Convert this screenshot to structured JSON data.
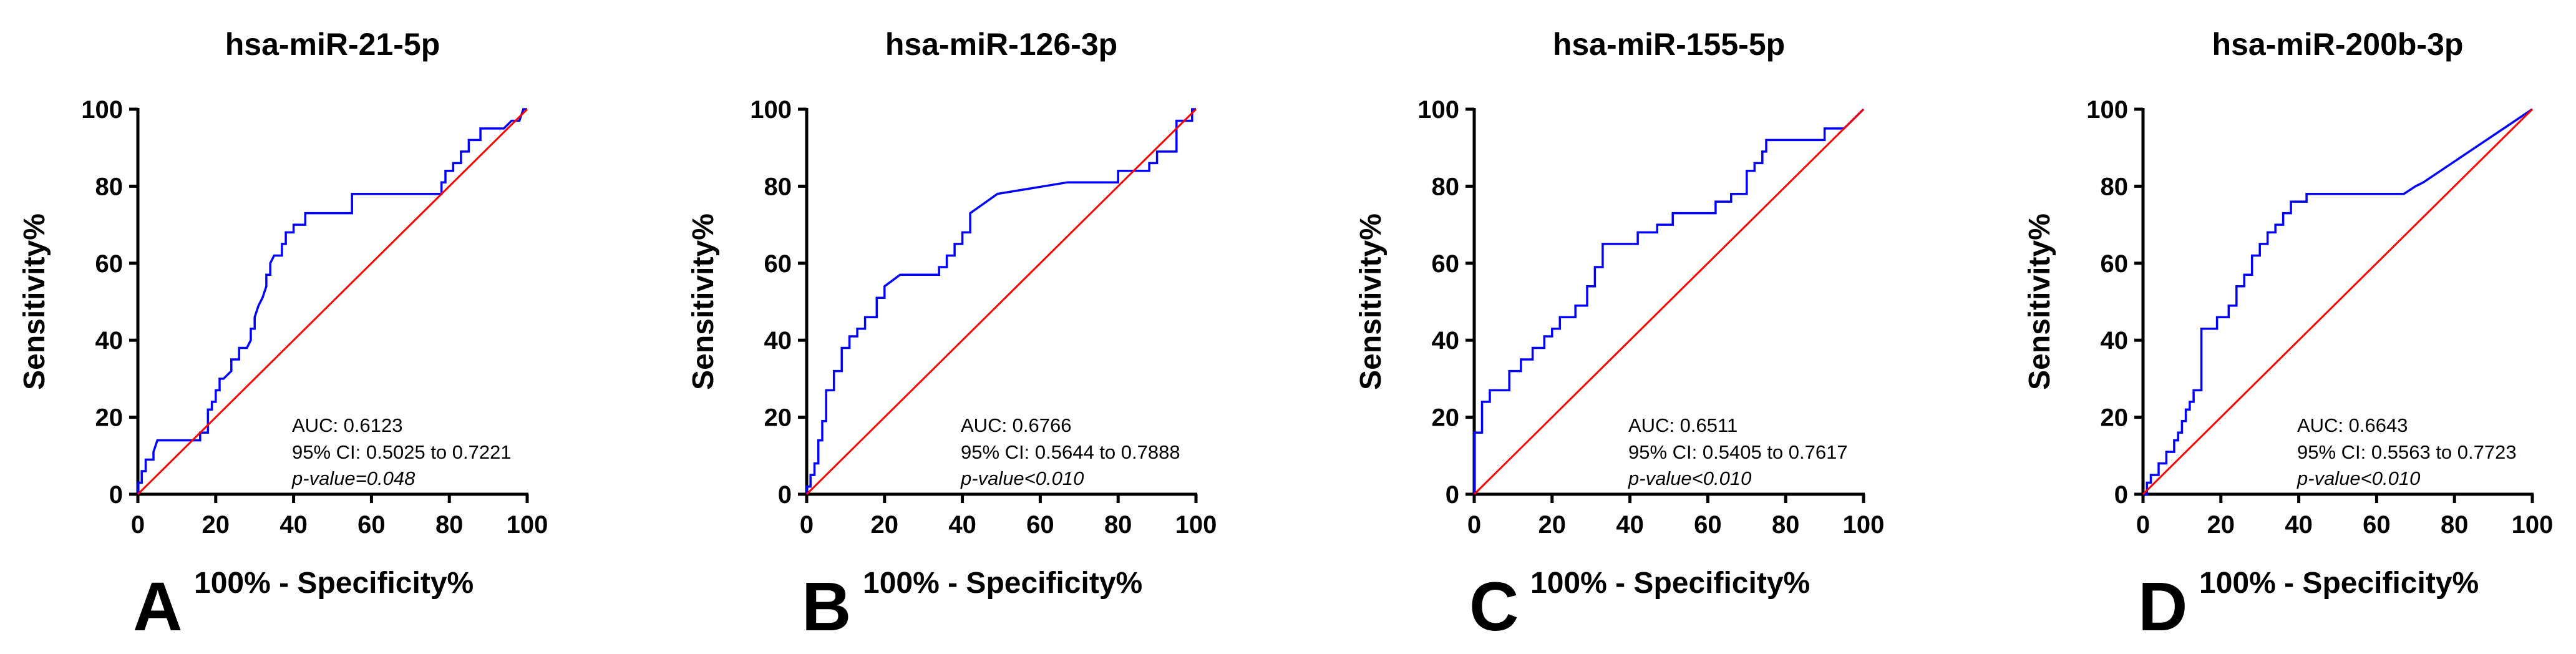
{
  "chart_data": [
    {
      "type": "line",
      "panel": "A",
      "title": "hsa-miR-21-5p",
      "xlabel": "100% - Specificity%",
      "ylabel": "Sensitivity%",
      "xlim": [
        0,
        100
      ],
      "ylim": [
        0,
        100
      ],
      "xticks": [
        "0",
        "20",
        "40",
        "60",
        "80",
        "100"
      ],
      "yticks": [
        "0",
        "20",
        "40",
        "60",
        "80",
        "100"
      ],
      "annotations": {
        "auc": "AUC: 0.6123",
        "ci": "95% CI: 0.5025 to 0.7221",
        "p": "p-value=0.048"
      },
      "series": [
        {
          "name": "ROC curve",
          "color": "#0000ff",
          "x": [
            0,
            0,
            1,
            1,
            2,
            2,
            4,
            4,
            5,
            16,
            16,
            17,
            18,
            18,
            19,
            19,
            20,
            20,
            21,
            21,
            22,
            24,
            24,
            26,
            26,
            28,
            29,
            29,
            30,
            30,
            31,
            32,
            33,
            33,
            34,
            34,
            35,
            37,
            37,
            38,
            38,
            40,
            40,
            43,
            43,
            45,
            45,
            55,
            55,
            78,
            78,
            79,
            79,
            80,
            81,
            81,
            82,
            83,
            83,
            85,
            85,
            88,
            88,
            94,
            94,
            96,
            97,
            98,
            99,
            100
          ],
          "y": [
            0,
            3,
            3,
            6,
            6,
            9,
            9,
            11,
            14,
            14,
            16,
            16,
            16,
            22,
            22,
            24,
            24,
            27,
            27,
            30,
            30,
            32,
            35,
            35,
            38,
            38,
            40,
            43,
            43,
            46,
            49,
            51,
            54,
            57,
            57,
            60,
            62,
            62,
            65,
            65,
            68,
            68,
            70,
            70,
            73,
            73,
            73,
            73,
            78,
            78,
            81,
            81,
            84,
            84,
            84,
            86,
            86,
            86,
            89,
            89,
            92,
            92,
            95,
            95,
            95,
            97,
            97,
            97,
            100,
            100
          ]
        },
        {
          "name": "Reference line",
          "color": "#ff0000",
          "x": [
            0,
            100
          ],
          "y": [
            0,
            100
          ]
        }
      ]
    },
    {
      "type": "line",
      "panel": "B",
      "title": "hsa-miR-126-3p",
      "xlabel": "100% - Specificity%",
      "ylabel": "Sensitivity%",
      "xlim": [
        0,
        100
      ],
      "ylim": [
        0,
        100
      ],
      "xticks": [
        "0",
        "20",
        "40",
        "60",
        "80",
        "100"
      ],
      "yticks": [
        "0",
        "20",
        "40",
        "60",
        "80",
        "100"
      ],
      "annotations": {
        "auc": "AUC: 0.6766",
        "ci": "95% CI: 0.5644 to 0.7888",
        "p": "p-value<0.010"
      },
      "series": [
        {
          "name": "ROC curve",
          "color": "#0000ff",
          "x": [
            0,
            0,
            1,
            1,
            2,
            2,
            3,
            3,
            4,
            4,
            5,
            5,
            7,
            7,
            9,
            9,
            11,
            11,
            13,
            13,
            15,
            15,
            18,
            18,
            20,
            20,
            24,
            34,
            34,
            36,
            36,
            38,
            38,
            40,
            40,
            42,
            42,
            49,
            67,
            80,
            80,
            88,
            88,
            90,
            90,
            95,
            95,
            99,
            99,
            100
          ],
          "y": [
            0,
            2,
            2,
            5,
            5,
            8,
            8,
            14,
            14,
            19,
            19,
            27,
            27,
            32,
            32,
            38,
            38,
            41,
            41,
            43,
            43,
            46,
            46,
            51,
            51,
            54,
            57,
            57,
            59,
            59,
            62,
            62,
            65,
            65,
            68,
            68,
            73,
            78,
            81,
            81,
            84,
            84,
            86,
            86,
            89,
            89,
            97,
            97,
            100,
            100
          ]
        },
        {
          "name": "Reference line",
          "color": "#ff0000",
          "x": [
            0,
            100
          ],
          "y": [
            0,
            100
          ]
        }
      ]
    },
    {
      "type": "line",
      "panel": "C",
      "title": "hsa-miR-155-5p",
      "xlabel": "100% - Specificity%",
      "ylabel": "Sensitivity%",
      "xlim": [
        0,
        100
      ],
      "ylim": [
        0,
        100
      ],
      "xticks": [
        "0",
        "20",
        "40",
        "60",
        "80",
        "100"
      ],
      "yticks": [
        "0",
        "20",
        "40",
        "60",
        "80",
        "100"
      ],
      "annotations": {
        "auc": "AUC: 0.6511",
        "ci": "95% CI: 0.5405 to 0.7617",
        "p": "p-value<0.010"
      },
      "series": [
        {
          "name": "ROC curve",
          "color": "#0000ff",
          "x": [
            0,
            0,
            2,
            2,
            4,
            4,
            9,
            9,
            12,
            12,
            15,
            15,
            18,
            18,
            20,
            20,
            22,
            22,
            26,
            26,
            29,
            29,
            31,
            31,
            33,
            33,
            42,
            42,
            47,
            47,
            51,
            51,
            56,
            56,
            62,
            62,
            66,
            66,
            70,
            70,
            72,
            72,
            74,
            74,
            75,
            75,
            76,
            76,
            80,
            90,
            90,
            95,
            100
          ],
          "y": [
            0,
            16,
            16,
            24,
            24,
            27,
            27,
            32,
            32,
            35,
            35,
            38,
            38,
            41,
            41,
            43,
            43,
            46,
            46,
            49,
            49,
            54,
            54,
            59,
            59,
            65,
            65,
            68,
            68,
            70,
            70,
            73,
            73,
            73,
            73,
            76,
            76,
            78,
            78,
            84,
            84,
            86,
            86,
            89,
            89,
            92,
            92,
            92,
            92,
            92,
            95,
            95,
            100
          ]
        },
        {
          "name": "Reference line",
          "color": "#ff0000",
          "x": [
            0,
            100
          ],
          "y": [
            0,
            100
          ]
        }
      ]
    },
    {
      "type": "line",
      "panel": "D",
      "title": "hsa-miR-200b-3p",
      "xlabel": "100% - Specificity%",
      "ylabel": "Sensitivity%",
      "xlim": [
        0,
        100
      ],
      "ylim": [
        0,
        100
      ],
      "xticks": [
        "0",
        "20",
        "40",
        "60",
        "80",
        "100"
      ],
      "yticks": [
        "0",
        "20",
        "40",
        "60",
        "80",
        "100"
      ],
      "annotations": {
        "auc": "AUC: 0.6643",
        "ci": "95% CI: 0.5563 to 0.7723",
        "p": "p-value<0.010"
      },
      "series": [
        {
          "name": "ROC curve",
          "color": "#0000ff",
          "x": [
            0,
            1,
            1,
            2,
            2,
            4,
            4,
            6,
            6,
            8,
            8,
            9,
            9,
            10,
            10,
            11,
            11,
            12,
            12,
            13,
            13,
            15,
            15,
            19,
            19,
            22,
            22,
            24,
            24,
            26,
            26,
            28,
            28,
            30,
            30,
            32,
            32,
            34,
            34,
            36,
            36,
            38,
            38,
            42,
            42,
            48,
            67,
            70,
            72,
            100
          ],
          "y": [
            0,
            0,
            3,
            3,
            5,
            5,
            8,
            8,
            11,
            11,
            14,
            14,
            16,
            16,
            19,
            19,
            22,
            22,
            24,
            24,
            27,
            27,
            43,
            43,
            46,
            46,
            49,
            49,
            54,
            54,
            57,
            57,
            62,
            62,
            65,
            65,
            68,
            68,
            70,
            70,
            73,
            73,
            76,
            76,
            78,
            78,
            78,
            80,
            81,
            100
          ]
        },
        {
          "name": "Reference line",
          "color": "#ff0000",
          "x": [
            0,
            100
          ],
          "y": [
            0,
            100
          ]
        }
      ]
    }
  ]
}
